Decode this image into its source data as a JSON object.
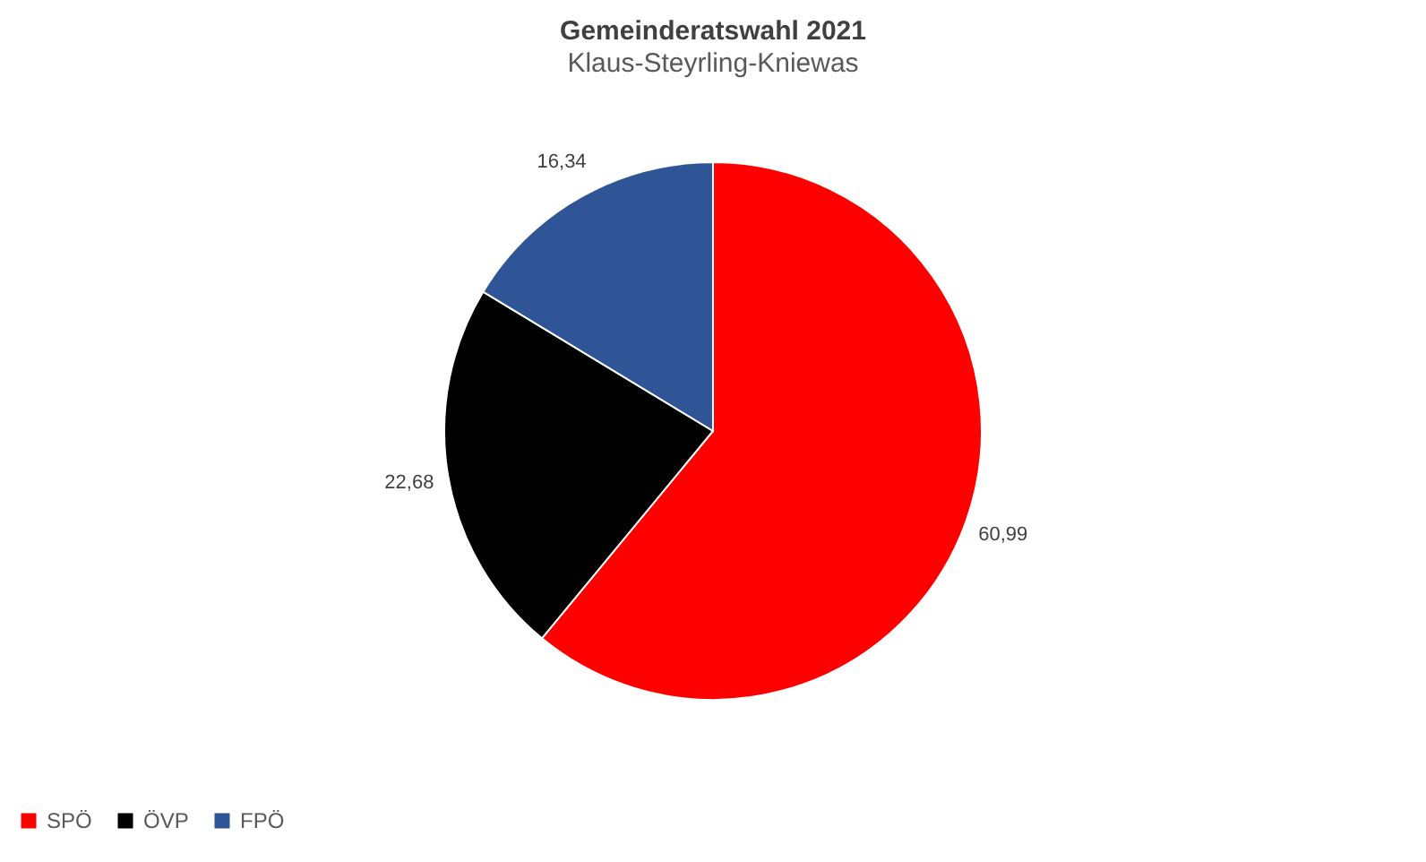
{
  "chart_data": {
    "type": "pie",
    "title": "Gemeinderatswahl 2021",
    "subtitle": "Klaus-Steyrling-Kniewas",
    "categories": [
      "SPÖ",
      "ÖVP",
      "FPÖ"
    ],
    "values": [
      60.99,
      22.68,
      16.34
    ],
    "colors": [
      "#ff0000",
      "#000000",
      "#2f5597"
    ],
    "value_labels": [
      "60,99",
      "22,68",
      "16,34"
    ],
    "legend": "bottom"
  }
}
